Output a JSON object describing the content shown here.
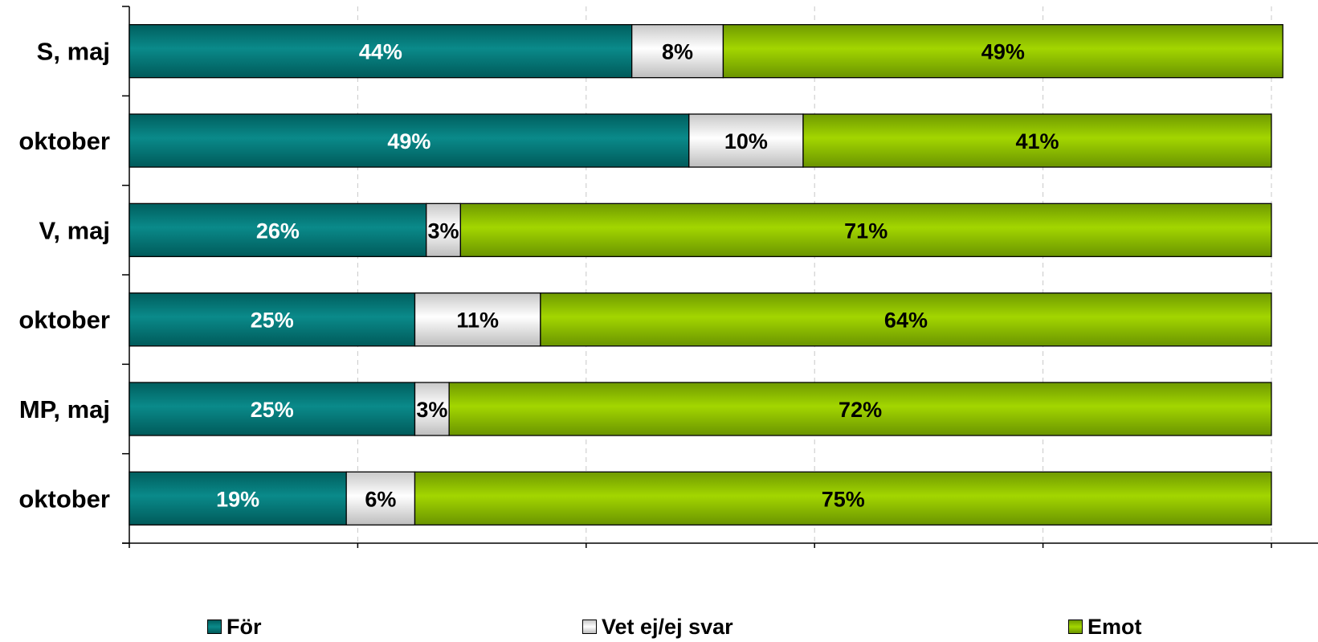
{
  "chart_data": {
    "type": "bar",
    "orientation": "horizontal",
    "stacked": true,
    "normalized_100_percent": true,
    "categories": [
      "S, maj",
      "oktober",
      "V, maj",
      "oktober",
      "MP, maj",
      "oktober"
    ],
    "series": [
      {
        "name": "För",
        "values": [
          44,
          49,
          26,
          25,
          25,
          19
        ],
        "labels": [
          "44%",
          "49%",
          "26%",
          "25%",
          "25%",
          "19%"
        ],
        "color": "#007D7D",
        "label_color": "#FFFFFF"
      },
      {
        "name": "Vet ej/ej svar",
        "values": [
          8,
          10,
          3,
          11,
          3,
          6
        ],
        "labels": [
          "8%",
          "10%",
          "3%",
          "11%",
          "3%",
          "6%"
        ],
        "color": "#EDEDED",
        "label_color": "#000000"
      },
      {
        "name": "Emot",
        "values": [
          49,
          41,
          71,
          64,
          72,
          75
        ],
        "labels": [
          "49%",
          "41%",
          "71%",
          "64%",
          "72%",
          "75%"
        ],
        "color": "#99CC00",
        "label_color": "#000000"
      }
    ],
    "xlim": [
      0,
      100
    ],
    "grid": "vertical dashed",
    "legend_position": "bottom",
    "title": "",
    "xlabel": "",
    "ylabel": ""
  },
  "legend": {
    "items": [
      {
        "label": "För",
        "color": "#007D7D"
      },
      {
        "label": "Vet ej/ej svar",
        "color": "#EDEDED"
      },
      {
        "label": "Emot",
        "color": "#99CC00"
      }
    ]
  }
}
